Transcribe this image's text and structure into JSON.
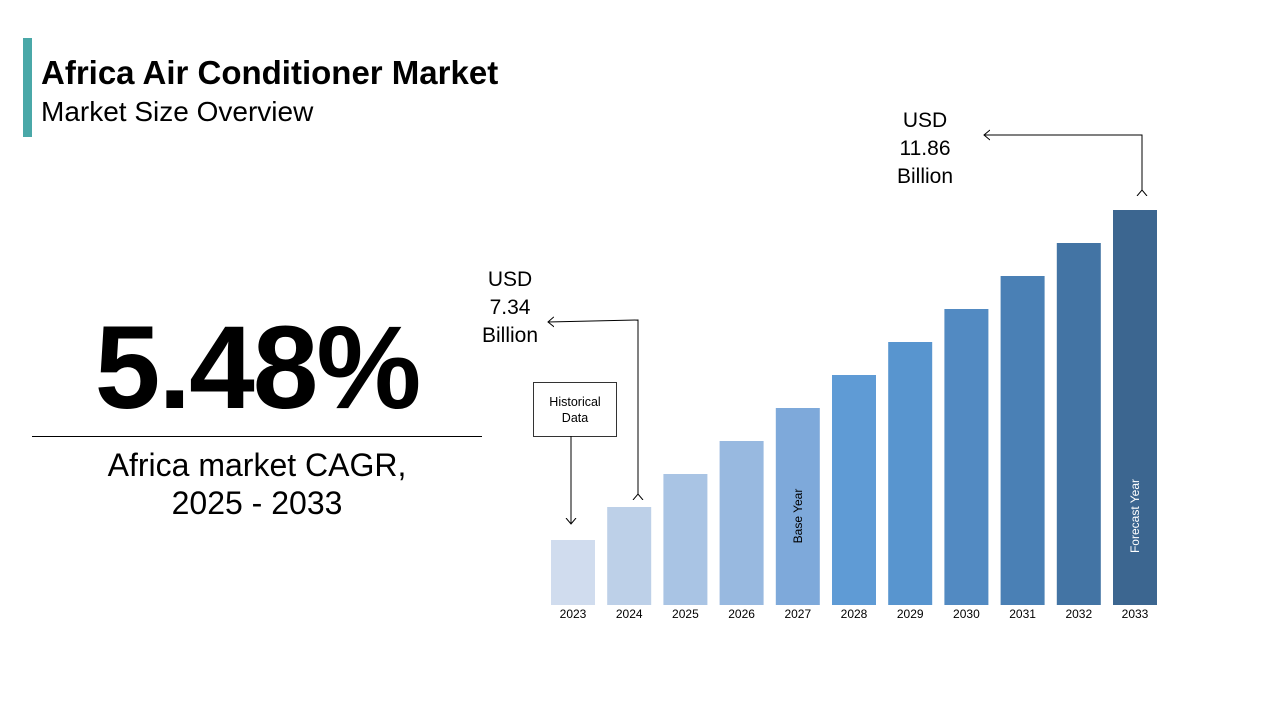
{
  "header": {
    "title": "Africa Air Conditioner Market",
    "subtitle": "Market Size Overview",
    "accent_color": "#4aa8a8"
  },
  "kpi": {
    "cagr": "5.48%",
    "label_line1": "Africa market CAGR,",
    "label_line2": "2025 - 2033"
  },
  "chart_data": {
    "type": "bar",
    "title": "",
    "categories": [
      "2023",
      "2024",
      "2025",
      "2026",
      "2027",
      "2028",
      "2029",
      "2030",
      "2031",
      "2032",
      "2033"
    ],
    "values": [
      null,
      7.34,
      null,
      null,
      null,
      null,
      null,
      null,
      null,
      null,
      11.86
    ],
    "unit": "USD Billion",
    "colors": [
      "#d0dcee",
      "#bdd0e8",
      "#a9c4e4",
      "#98b9e0",
      "#7ea9da",
      "#5f9bd5",
      "#5895cf",
      "#528ac2",
      "#4a80b5",
      "#4374a4",
      "#3c6690"
    ],
    "bar_labels": {
      "2027": "Base Year",
      "2033": "Forecast Year"
    },
    "annotations": {
      "start": {
        "line1": "USD",
        "line2": "7.34",
        "line3": "Billion"
      },
      "end": {
        "line1": "USD",
        "line2": "11.86",
        "line3": "Billion"
      },
      "historical": {
        "line1": "Historical",
        "line2": "Data"
      }
    },
    "grid": false,
    "legend": "none"
  }
}
